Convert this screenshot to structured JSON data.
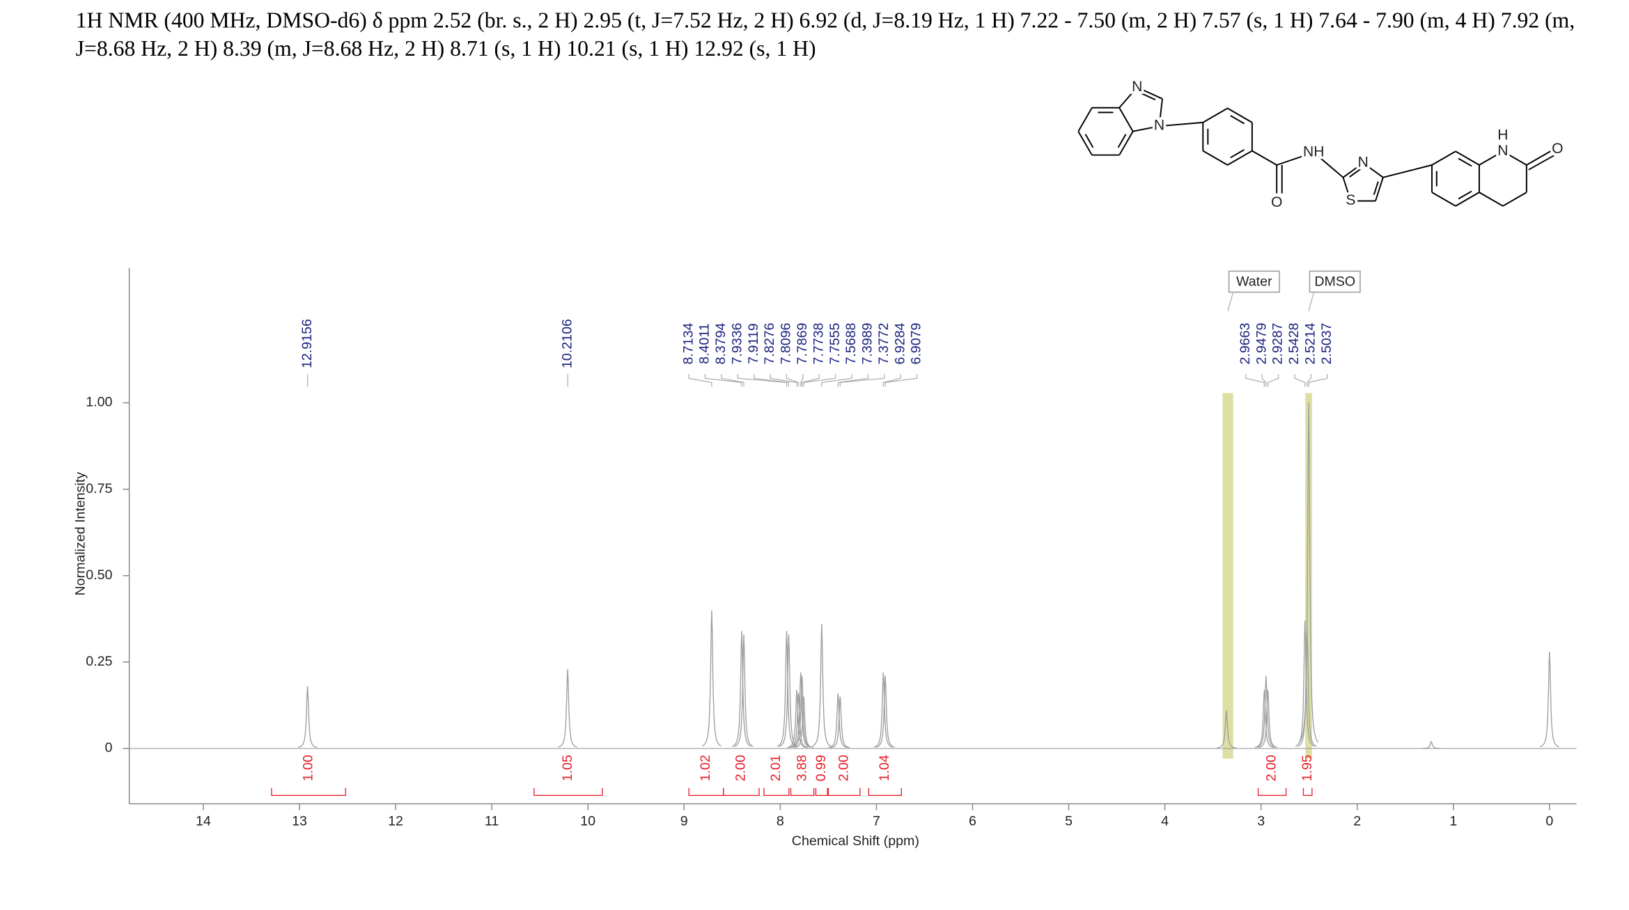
{
  "header": "1H NMR (400 MHz, DMSO-d6) δ ppm 2.52 (br. s., 2 H) 2.95 (t, J=7.52 Hz, 2 H) 6.92 (d, J=8.19 Hz, 1 H) 7.22 - 7.50 (m, 2 H) 7.57 (s, 1 H) 7.64 - 7.90 (m, 4 H) 7.92 (m, J=8.68 Hz, 2 H) 8.39 (m, J=8.68 Hz, 2 H) 8.71 (s, 1 H) 10.21 (s, 1 H) 12.92 (s, 1 H)",
  "structure_labels": [
    "N",
    "N",
    "NH",
    "N",
    "S",
    "H",
    "N",
    "O",
    "O"
  ],
  "chart_data": {
    "type": "spectrum",
    "xlabel": "Chemical Shift (ppm)",
    "ylabel": "Normalized Intensity",
    "xlim": [
      14.77,
      -0.28
    ],
    "ylim": [
      -0.16,
      1.39
    ],
    "xticks": [
      14,
      13,
      12,
      11,
      10,
      9,
      8,
      7,
      6,
      5,
      4,
      3,
      2,
      1,
      0
    ],
    "yticks": [
      0,
      0.25,
      {
        "value": 0.5,
        "label": "0.50"
      },
      0.75,
      {
        "value": 1,
        "label": "1.00"
      }
    ],
    "color": "#9e9e9e",
    "x": [
      12.916,
      10.211,
      8.713,
      8.401,
      8.379,
      7.934,
      7.912,
      7.828,
      7.81,
      7.787,
      7.774,
      7.756,
      7.569,
      7.399,
      7.377,
      6.928,
      6.908,
      3.36,
      2.966,
      2.948,
      2.929,
      2.543,
      2.521,
      2.504,
      1.23,
      0
    ],
    "values": [
      0.18,
      0.23,
      0.4,
      0.34,
      0.33,
      0.34,
      0.33,
      0.17,
      0.16,
      0.22,
      0.21,
      0.15,
      0.36,
      0.16,
      0.15,
      0.22,
      0.21,
      0.11,
      0.17,
      0.21,
      0.17,
      0.37,
      0.35,
      1.0,
      0.02,
      0.28
    ],
    "peak_picks": [
      12.9156,
      10.2106,
      8.7134,
      8.4011,
      8.3794,
      7.9336,
      7.9119,
      7.8276,
      7.8096,
      7.7869,
      7.7738,
      7.7555,
      7.5688,
      7.3989,
      7.3772,
      6.9284,
      6.9079,
      2.9663,
      2.9479,
      2.9287,
      2.5428,
      2.5214,
      2.5037
    ],
    "peak_label_color": "#1a237e",
    "integral_color": "#e8202a",
    "integrals": [
      {
        "from": 13.29,
        "to": 12.52,
        "value": 1,
        "label": "1.00"
      },
      {
        "from": 10.56,
        "to": 9.85,
        "value": 1.05
      },
      {
        "from": 8.95,
        "to": 8.59,
        "value": 1.02
      },
      {
        "from": 8.59,
        "to": 8.22,
        "value": 2,
        "label": "2.00"
      },
      {
        "from": 8.17,
        "to": 7.91,
        "value": 2.01
      },
      {
        "from": 7.89,
        "to": 7.65,
        "value": 3.88
      },
      {
        "from": 7.63,
        "to": 7.51,
        "value": 0.99
      },
      {
        "from": 7.5,
        "to": 7.17,
        "value": 2,
        "label": "2.00"
      },
      {
        "from": 7.08,
        "to": 6.74,
        "value": 1.04
      },
      {
        "from": 3.03,
        "to": 2.74,
        "value": 2,
        "label": "2.00"
      },
      {
        "from": 2.56,
        "to": 2.47,
        "value": 1.95
      }
    ],
    "region_color": "#dcdfa4",
    "regions": [
      {
        "label": "Water",
        "from": 3.4,
        "to": 3.29
      },
      {
        "label": "DMSO",
        "from": 2.54,
        "to": 2.47
      }
    ]
  }
}
